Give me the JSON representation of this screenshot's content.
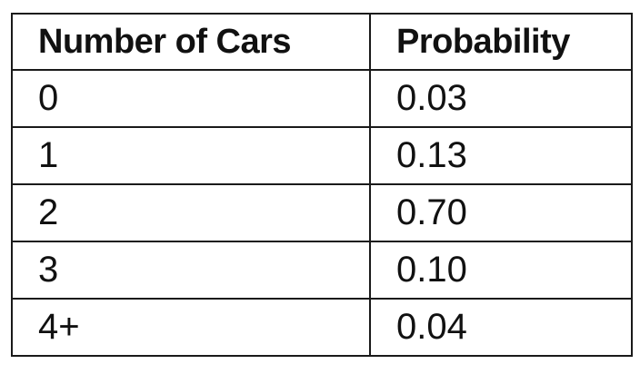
{
  "table": {
    "headers": [
      "Number of Cars",
      "Probability"
    ],
    "rows": [
      [
        "0",
        "0.03"
      ],
      [
        "1",
        "0.13"
      ],
      [
        "2",
        "0.70"
      ],
      [
        "3",
        "0.10"
      ],
      [
        "4+",
        "0.04"
      ]
    ]
  }
}
